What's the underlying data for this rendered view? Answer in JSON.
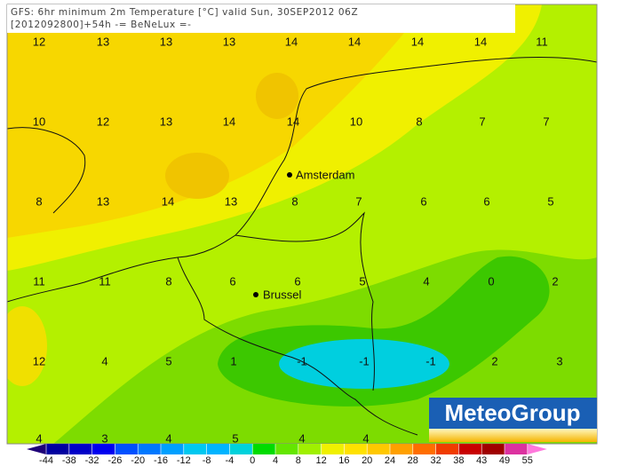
{
  "header": {
    "line1": "GFS: 6hr minimum 2m Temperature [°C] valid Sun, 30SEP2012 06Z",
    "line2": "[2012092800]+54h -= BeNeLux =-"
  },
  "grid_values": [
    [
      12,
      13,
      13,
      13,
      14,
      14,
      14,
      14,
      11
    ],
    [
      10,
      12,
      13,
      14,
      14,
      10,
      8,
      7,
      7
    ],
    [
      8,
      13,
      14,
      13,
      8,
      7,
      6,
      6,
      5
    ],
    [
      11,
      11,
      8,
      6,
      6,
      5,
      4,
      0,
      2
    ],
    [
      12,
      4,
      5,
      1,
      -1,
      -1,
      -1,
      2,
      3
    ],
    [
      4,
      3,
      4,
      5,
      4,
      4
    ]
  ],
  "cities": [
    {
      "name": "Amsterdam"
    },
    {
      "name": "Brussel"
    }
  ],
  "legend": {
    "ticks": [
      -44,
      -38,
      -32,
      -26,
      -20,
      -16,
      -12,
      -8,
      -4,
      0,
      4,
      8,
      12,
      16,
      20,
      24,
      28,
      32,
      38,
      43,
      49,
      55
    ],
    "colors": [
      "#1e0078",
      "#0000a0",
      "#0000c8",
      "#0000f0",
      "#0050ff",
      "#0078ff",
      "#00a0ff",
      "#00c8f0",
      "#00b4ff",
      "#00d2dc",
      "#00dc00",
      "#64e600",
      "#a0f000",
      "#f0f000",
      "#ffe100",
      "#ffc800",
      "#ffa000",
      "#ff6e00",
      "#f03c00",
      "#c80000",
      "#a00000",
      "#dc32a0",
      "#ff78dc"
    ]
  },
  "logo": "MeteoGroup"
}
